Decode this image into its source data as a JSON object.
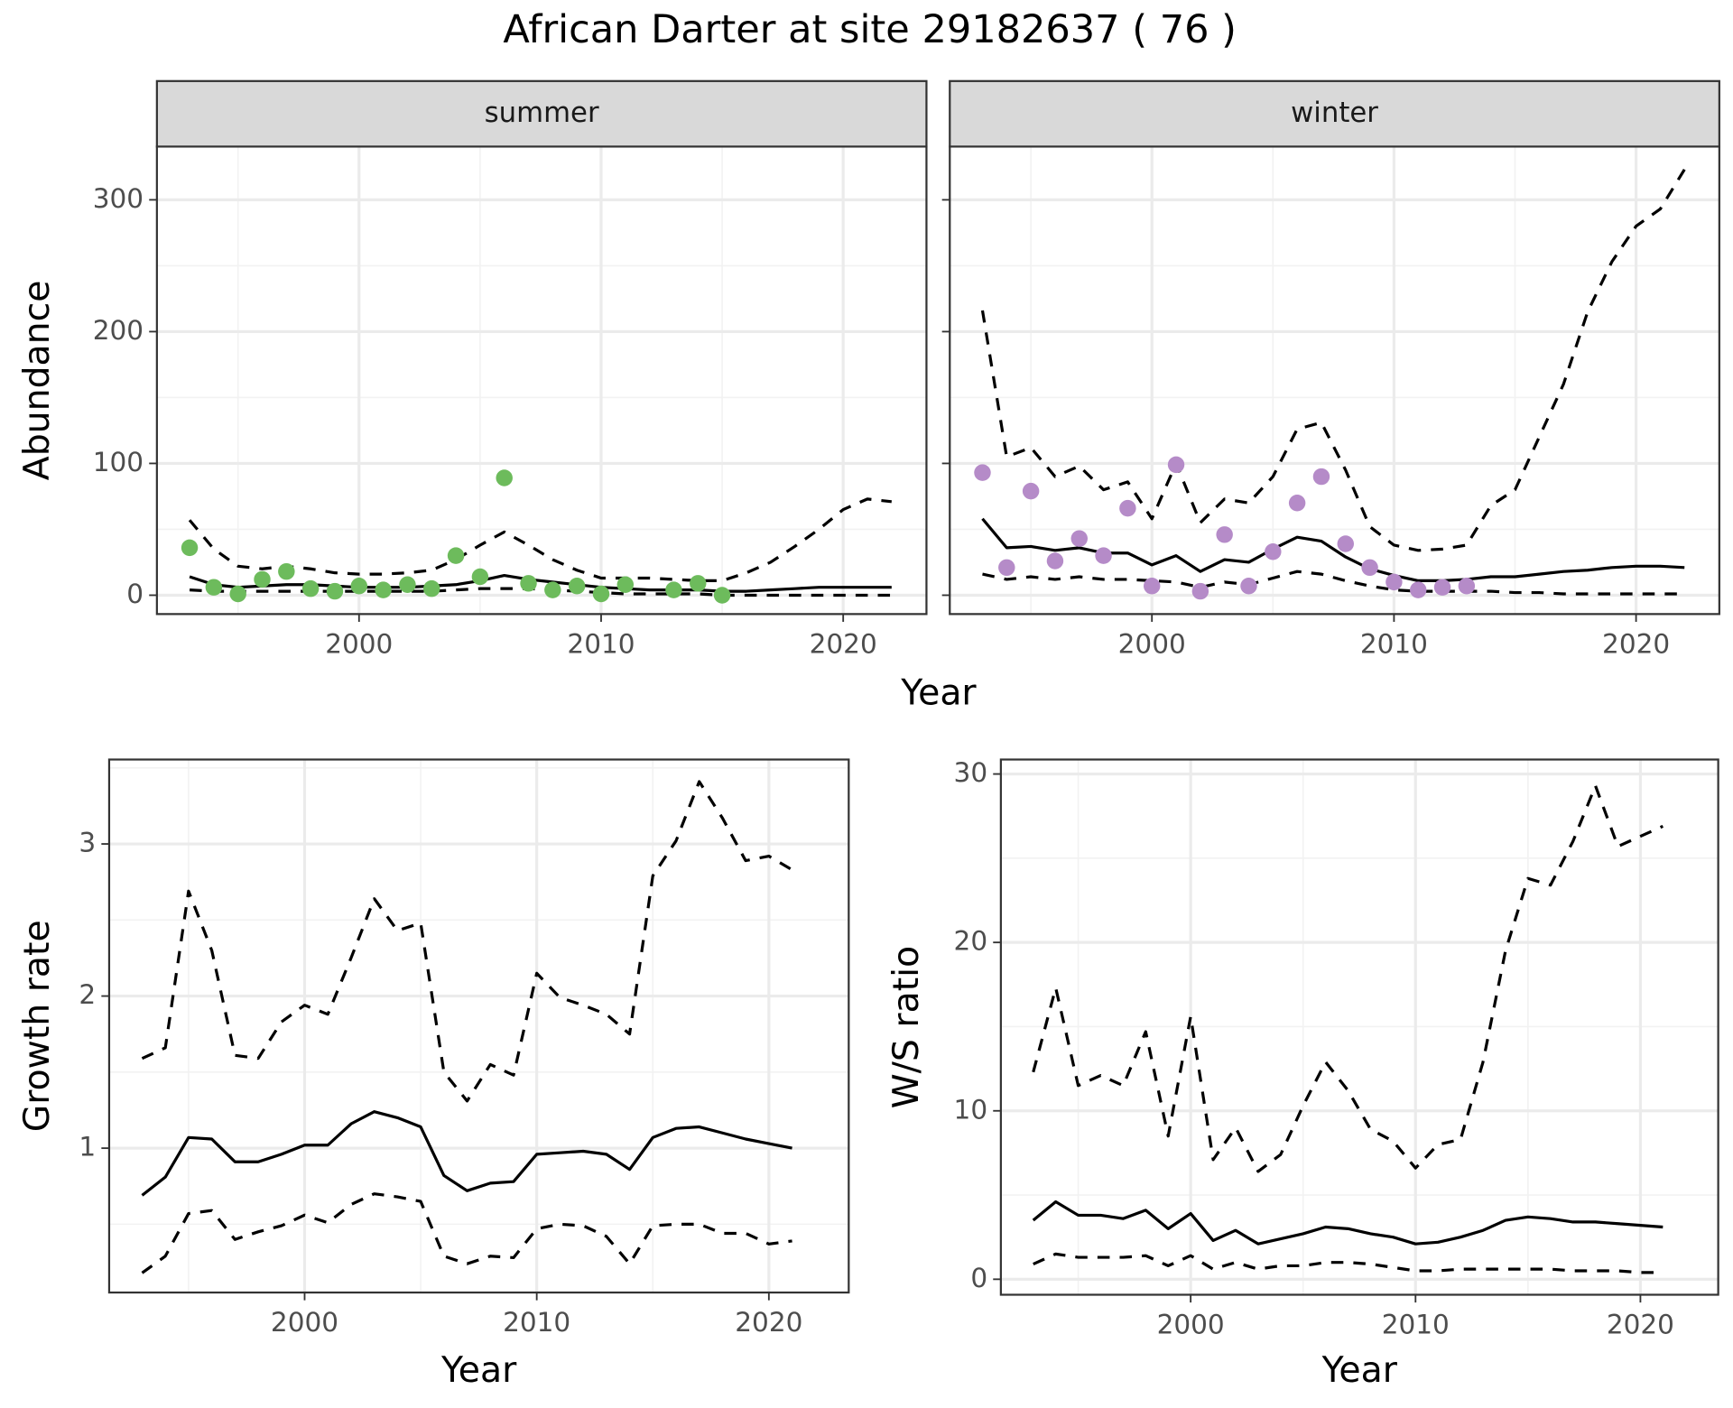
{
  "title": "African Darter at site 29182637 ( 76 )",
  "chart_data": [
    {
      "type": "line",
      "strip": "summer",
      "ylabel": "Abundance",
      "xlabel": "Year",
      "xlim": [
        1991.65,
        2023.44
      ],
      "ylim": [
        -14.3,
        340.4
      ],
      "xticks": [
        2000,
        2010,
        2020
      ],
      "xminor": [
        1995,
        2005,
        2015
      ],
      "yticks": [
        0,
        100,
        200,
        300
      ],
      "yminor": [
        50,
        150,
        250
      ],
      "ytick_labels": true,
      "grid": true,
      "x": [
        1993,
        1994,
        1995,
        1996,
        1997,
        1998,
        1999,
        2000,
        2001,
        2002,
        2003,
        2004,
        2005,
        2006,
        2007,
        2008,
        2009,
        2010,
        2011,
        2012,
        2013,
        2014,
        2015,
        2016,
        2017,
        2018,
        2019,
        2020,
        2021,
        2022
      ],
      "series": [
        {
          "style": "dashed",
          "color": "#000000",
          "values": [
            57,
            35,
            22,
            20,
            22,
            20,
            17,
            16,
            16,
            17,
            19,
            27,
            38,
            48,
            38,
            27,
            19,
            13,
            13,
            13,
            12,
            11,
            11,
            17,
            25,
            37,
            50,
            65,
            73,
            71
          ]
        },
        {
          "style": "solid",
          "color": "#000000",
          "values": [
            14,
            8,
            6,
            7,
            8,
            8,
            7,
            6,
            6,
            6,
            7,
            8,
            11,
            15,
            12,
            10,
            8,
            6,
            5,
            4,
            4,
            4,
            3,
            3,
            4,
            5,
            6,
            6,
            6,
            6
          ]
        },
        {
          "style": "dashed",
          "color": "#000000",
          "values": [
            4,
            3,
            3,
            3,
            3,
            3,
            3,
            3,
            3,
            3,
            3,
            4,
            5,
            5,
            5,
            4,
            3,
            2,
            1,
            1,
            1,
            1,
            0,
            0,
            0,
            0,
            0,
            0,
            0,
            0
          ]
        },
        {
          "style": "points",
          "color": "#6dbb5c",
          "x": [
            1993,
            1994,
            1995,
            1996,
            1997,
            1998,
            1999,
            2000,
            2001,
            2002,
            2003,
            2004,
            2005,
            2006,
            2007,
            2008,
            2009,
            2010,
            2011,
            2013,
            2014,
            2015
          ],
          "values": [
            36,
            6,
            1,
            12,
            18,
            5,
            3,
            7,
            4,
            8,
            5,
            30,
            14,
            89,
            9,
            4,
            7,
            1,
            8,
            4,
            9,
            0
          ]
        }
      ]
    },
    {
      "type": "line",
      "strip": "winter",
      "xlim": [
        1991.65,
        2023.44
      ],
      "ylim": [
        -14.3,
        340.4
      ],
      "xticks": [
        2000,
        2010,
        2020
      ],
      "xminor": [
        1995,
        2005,
        2015
      ],
      "yticks": [
        0,
        100,
        200,
        300
      ],
      "yminor": [
        50,
        150,
        250
      ],
      "ytick_labels": false,
      "grid": true,
      "x": [
        1993,
        1994,
        1995,
        1996,
        1997,
        1998,
        1999,
        2000,
        2001,
        2002,
        2003,
        2004,
        2005,
        2006,
        2007,
        2008,
        2009,
        2010,
        2011,
        2012,
        2013,
        2014,
        2015,
        2016,
        2017,
        2018,
        2019,
        2020,
        2021,
        2022
      ],
      "series": [
        {
          "style": "dashed",
          "color": "#000000",
          "values": [
            216,
            105,
            112,
            90,
            98,
            80,
            86,
            58,
            100,
            55,
            73,
            70,
            90,
            126,
            131,
            95,
            52,
            38,
            34,
            35,
            38,
            68,
            80,
            120,
            160,
            215,
            253,
            280,
            293,
            323
          ]
        },
        {
          "style": "solid",
          "color": "#000000",
          "values": [
            58,
            36,
            37,
            34,
            36,
            32,
            32,
            23,
            30,
            18,
            27,
            25,
            35,
            44,
            41,
            29,
            20,
            15,
            11,
            11,
            12,
            14,
            14,
            16,
            18,
            19,
            21,
            22,
            22,
            21
          ]
        },
        {
          "style": "dashed",
          "color": "#000000",
          "values": [
            16,
            12,
            14,
            12,
            14,
            12,
            12,
            11,
            10,
            6,
            10,
            8,
            13,
            18,
            16,
            11,
            7,
            4,
            3,
            3,
            3,
            3,
            2,
            2,
            1,
            1,
            1,
            1,
            1,
            1
          ]
        },
        {
          "style": "points",
          "color": "#b58bc8",
          "x": [
            1993,
            1994,
            1995,
            1996,
            1997,
            1998,
            1999,
            2000,
            2001,
            2002,
            2003,
            2004,
            2005,
            2006,
            2007,
            2008,
            2009,
            2010,
            2011,
            2012,
            2013
          ],
          "values": [
            93,
            21,
            79,
            26,
            43,
            30,
            66,
            7,
            99,
            3,
            46,
            7,
            33,
            70,
            90,
            39,
            21,
            10,
            4,
            6,
            7
          ]
        }
      ]
    },
    {
      "type": "line",
      "ylabel": "Growth rate",
      "xlabel": "Year",
      "xlim": [
        1991.58,
        2023.44
      ],
      "ylim": [
        0.051,
        3.555
      ],
      "xticks": [
        2000,
        2010,
        2020
      ],
      "xminor": [
        1995,
        2005,
        2015
      ],
      "yticks": [
        1,
        2,
        3
      ],
      "yminor": [
        0.5,
        1.5,
        2.5,
        3.5
      ],
      "ytick_labels": true,
      "grid": true,
      "x": [
        1993,
        1994,
        1995,
        1996,
        1997,
        1998,
        1999,
        2000,
        2001,
        2002,
        2003,
        2004,
        2005,
        2006,
        2007,
        2008,
        2009,
        2010,
        2011,
        2012,
        2013,
        2014,
        2015,
        2016,
        2017,
        2018,
        2019,
        2020,
        2021
      ],
      "series": [
        {
          "style": "dashed",
          "color": "#000000",
          "values": [
            1.59,
            1.66,
            2.69,
            2.3,
            1.61,
            1.59,
            1.83,
            1.94,
            1.88,
            2.25,
            2.64,
            2.43,
            2.48,
            1.5,
            1.31,
            1.55,
            1.48,
            2.15,
            1.99,
            1.94,
            1.88,
            1.75,
            2.79,
            3.02,
            3.41,
            3.17,
            2.89,
            2.92,
            2.83
          ]
        },
        {
          "style": "solid",
          "color": "#000000",
          "values": [
            0.69,
            0.81,
            1.07,
            1.06,
            0.91,
            0.91,
            0.96,
            1.02,
            1.02,
            1.16,
            1.24,
            1.2,
            1.14,
            0.82,
            0.72,
            0.77,
            0.78,
            0.96,
            0.97,
            0.98,
            0.96,
            0.86,
            1.07,
            1.13,
            1.14,
            1.1,
            1.06,
            1.03,
            1.0
          ]
        },
        {
          "style": "dashed",
          "color": "#000000",
          "values": [
            0.18,
            0.29,
            0.57,
            0.59,
            0.4,
            0.45,
            0.49,
            0.56,
            0.51,
            0.63,
            0.7,
            0.68,
            0.65,
            0.29,
            0.24,
            0.29,
            0.28,
            0.47,
            0.5,
            0.49,
            0.42,
            0.24,
            0.49,
            0.5,
            0.5,
            0.44,
            0.44,
            0.37,
            0.39
          ]
        }
      ]
    },
    {
      "type": "line",
      "ylabel": "W/S ratio",
      "xlabel": "Year",
      "xlim": [
        1991.56,
        2023.46
      ],
      "ylim": [
        -0.92,
        30.86
      ],
      "xticks": [
        2000,
        2010,
        2020
      ],
      "xminor": [
        1995,
        2005,
        2015
      ],
      "yticks": [
        0,
        10,
        20,
        30
      ],
      "yminor": [
        5,
        15,
        25
      ],
      "ytick_labels": true,
      "grid": true,
      "x": [
        1993,
        1994,
        1995,
        1996,
        1997,
        1998,
        1999,
        2000,
        2001,
        2002,
        2003,
        2004,
        2005,
        2006,
        2007,
        2008,
        2009,
        2010,
        2011,
        2012,
        2013,
        2014,
        2015,
        2016,
        2017,
        2018,
        2019,
        2020,
        2021
      ],
      "series": [
        {
          "style": "dashed",
          "color": "#000000",
          "values": [
            12.3,
            17.3,
            11.5,
            12.1,
            11.5,
            14.7,
            8.5,
            15.6,
            7.1,
            9.0,
            6.4,
            7.4,
            10.3,
            12.9,
            11.2,
            8.9,
            8.2,
            6.6,
            8.0,
            8.3,
            12.9,
            19.5,
            23.8,
            23.4,
            26.0,
            29.3,
            25.7,
            26.3,
            26.9
          ]
        },
        {
          "style": "solid",
          "color": "#000000",
          "values": [
            3.5,
            4.6,
            3.8,
            3.8,
            3.6,
            4.1,
            3.0,
            3.9,
            2.3,
            2.9,
            2.1,
            2.4,
            2.7,
            3.1,
            3.0,
            2.7,
            2.5,
            2.1,
            2.2,
            2.5,
            2.9,
            3.5,
            3.7,
            3.6,
            3.4,
            3.4,
            3.3,
            3.2,
            3.1
          ]
        },
        {
          "style": "dashed",
          "color": "#000000",
          "values": [
            0.9,
            1.5,
            1.3,
            1.3,
            1.3,
            1.4,
            0.8,
            1.4,
            0.6,
            1.0,
            0.6,
            0.8,
            0.8,
            1.0,
            1.0,
            0.9,
            0.7,
            0.5,
            0.5,
            0.6,
            0.6,
            0.6,
            0.6,
            0.6,
            0.5,
            0.5,
            0.5,
            0.4,
            0.4
          ]
        }
      ]
    }
  ]
}
